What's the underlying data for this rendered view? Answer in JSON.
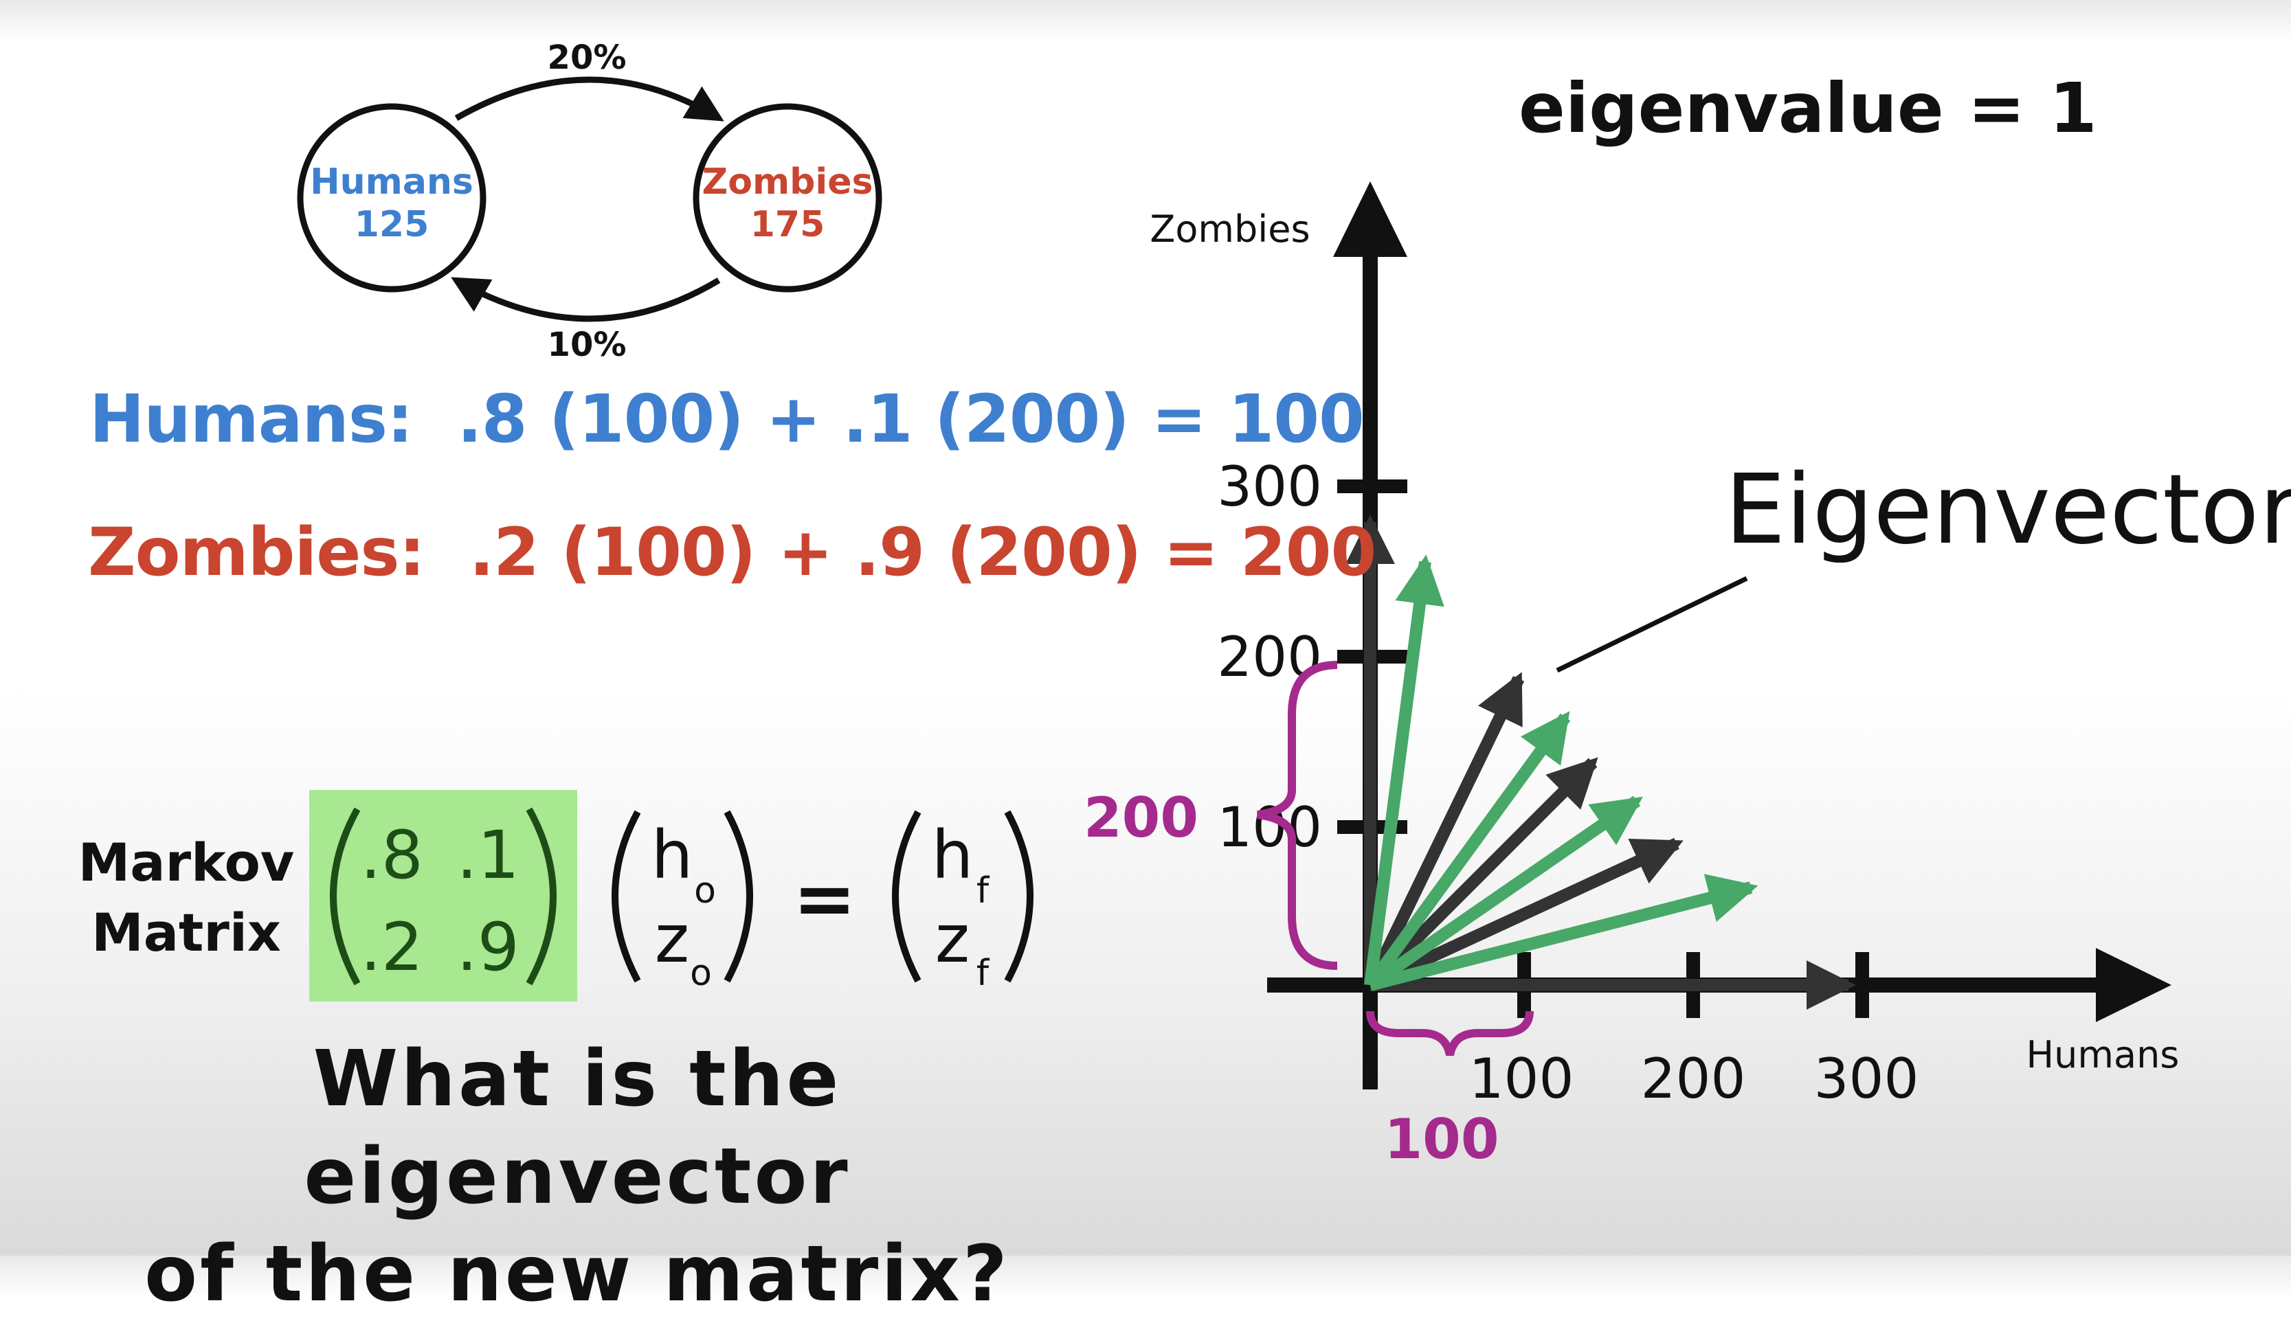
{
  "state_diagram": {
    "humans": {
      "label": "Humans",
      "value": "125"
    },
    "zombies": {
      "label": "Zombies",
      "value": "175"
    },
    "top_arrow_label": "20%",
    "bottom_arrow_label": "10%"
  },
  "equations": {
    "humans": "Humans:  .8 (100) + .1 (200) = 100",
    "zombies": "Zombies:  .2 (100) + .9 (200) = 200"
  },
  "markov": {
    "label_line1": "Markov",
    "label_line2": "Matrix",
    "matrix": [
      [
        ".8",
        ".1"
      ],
      [
        ".2",
        ".9"
      ]
    ],
    "input_vector": {
      "h": "h",
      "h_sub": "o",
      "z": "z",
      "z_sub": "o"
    },
    "equals": "=",
    "output_vector": {
      "h": "h",
      "h_sub": "f",
      "z": "z",
      "z_sub": "f"
    },
    "highlight_color": "#a8e890"
  },
  "question": {
    "line1": "What is the eigenvector",
    "line2": "of the new matrix?"
  },
  "plot": {
    "eigenvalue_text": "eigenvalue = 1",
    "eigenvector_label": "Eigenvector",
    "x_axis_label": "Humans",
    "y_axis_label": "Zombies",
    "x_ticks": [
      "100",
      "200",
      "300"
    ],
    "y_ticks": [
      "100",
      "200",
      "300"
    ],
    "brace_x_label": "100",
    "brace_y_label": "200",
    "colors": {
      "axis": "#111111",
      "dark_vector": "#333333",
      "green_vector": "#48a867",
      "brace": "#a52a8e"
    }
  }
}
